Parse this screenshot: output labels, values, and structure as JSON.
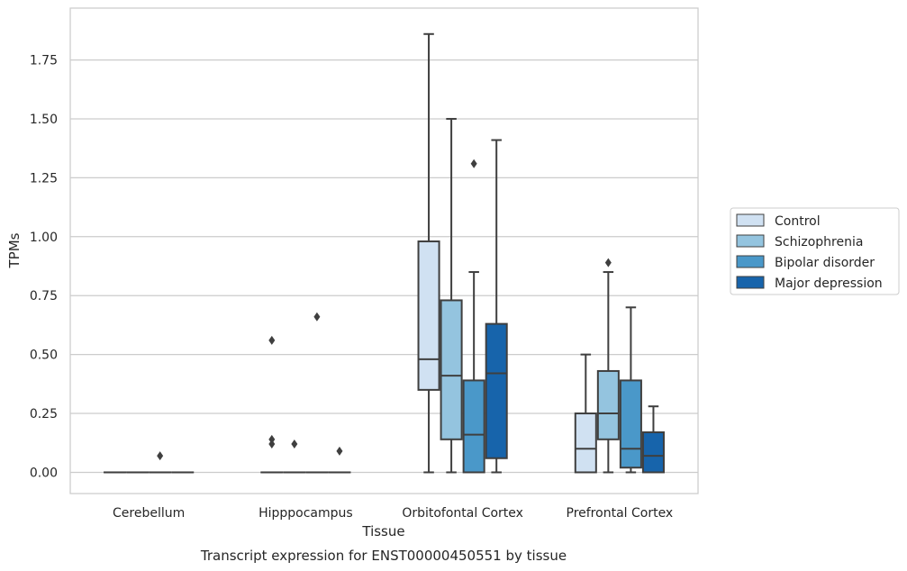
{
  "chart_data": {
    "type": "box",
    "caption": "Transcript expression for ENST00000450551 by tissue",
    "xlabel": "Tissue",
    "ylabel": "TPMs",
    "ylim": [
      -0.09,
      1.97
    ],
    "yticks": [
      0.0,
      0.25,
      0.5,
      0.75,
      1.0,
      1.25,
      1.5,
      1.75
    ],
    "ytick_labels": [
      "0.00",
      "0.25",
      "0.50",
      "0.75",
      "1.00",
      "1.25",
      "1.50",
      "1.75"
    ],
    "grid": "horizontal",
    "legend_position": "right",
    "categories": [
      "Cerebellum",
      "Hipppocampus",
      "Orbitofontal Cortex",
      "Prefrontal Cortex"
    ],
    "series": [
      {
        "name": "Control",
        "color": "#d0e1f2",
        "boxes": [
          {
            "whislo": 0.0,
            "q1": 0.0,
            "med": 0.0,
            "q3": 0.0,
            "whishi": 0.0,
            "fliers": []
          },
          {
            "whislo": 0.0,
            "q1": 0.0,
            "med": 0.0,
            "q3": 0.0,
            "whishi": 0.0,
            "fliers": [
              0.56,
              0.14,
              0.12
            ]
          },
          {
            "whislo": 0.0,
            "q1": 0.35,
            "med": 0.48,
            "q3": 0.98,
            "whishi": 1.86,
            "fliers": []
          },
          {
            "whislo": 0.0,
            "q1": 0.0,
            "med": 0.1,
            "q3": 0.25,
            "whishi": 0.5,
            "fliers": []
          }
        ]
      },
      {
        "name": "Schizophrenia",
        "color": "#94c4df",
        "boxes": [
          {
            "whislo": 0.0,
            "q1": 0.0,
            "med": 0.0,
            "q3": 0.0,
            "whishi": 0.0,
            "fliers": []
          },
          {
            "whislo": 0.0,
            "q1": 0.0,
            "med": 0.0,
            "q3": 0.0,
            "whishi": 0.0,
            "fliers": [
              0.12
            ]
          },
          {
            "whislo": 0.0,
            "q1": 0.14,
            "med": 0.41,
            "q3": 0.73,
            "whishi": 1.5,
            "fliers": []
          },
          {
            "whislo": 0.0,
            "q1": 0.14,
            "med": 0.25,
            "q3": 0.43,
            "whishi": 0.85,
            "fliers": [
              0.89
            ]
          }
        ]
      },
      {
        "name": "Bipolar disorder",
        "color": "#4a98c9",
        "boxes": [
          {
            "whislo": 0.0,
            "q1": 0.0,
            "med": 0.0,
            "q3": 0.0,
            "whishi": 0.0,
            "fliers": [
              0.07
            ]
          },
          {
            "whislo": 0.0,
            "q1": 0.0,
            "med": 0.0,
            "q3": 0.0,
            "whishi": 0.0,
            "fliers": [
              0.66
            ]
          },
          {
            "whislo": 0.0,
            "q1": 0.0,
            "med": 0.16,
            "q3": 0.39,
            "whishi": 0.85,
            "fliers": [
              1.31
            ]
          },
          {
            "whislo": 0.0,
            "q1": 0.02,
            "med": 0.1,
            "q3": 0.39,
            "whishi": 0.7,
            "fliers": []
          }
        ]
      },
      {
        "name": "Major depression",
        "color": "#1764ab",
        "boxes": [
          {
            "whislo": 0.0,
            "q1": 0.0,
            "med": 0.0,
            "q3": 0.0,
            "whishi": 0.0,
            "fliers": []
          },
          {
            "whislo": 0.0,
            "q1": 0.0,
            "med": 0.0,
            "q3": 0.0,
            "whishi": 0.0,
            "fliers": [
              0.09
            ]
          },
          {
            "whislo": 0.0,
            "q1": 0.06,
            "med": 0.42,
            "q3": 0.63,
            "whishi": 1.41,
            "fliers": []
          },
          {
            "whislo": 0.0,
            "q1": 0.0,
            "med": 0.07,
            "q3": 0.17,
            "whishi": 0.28,
            "fliers": []
          }
        ]
      }
    ]
  }
}
